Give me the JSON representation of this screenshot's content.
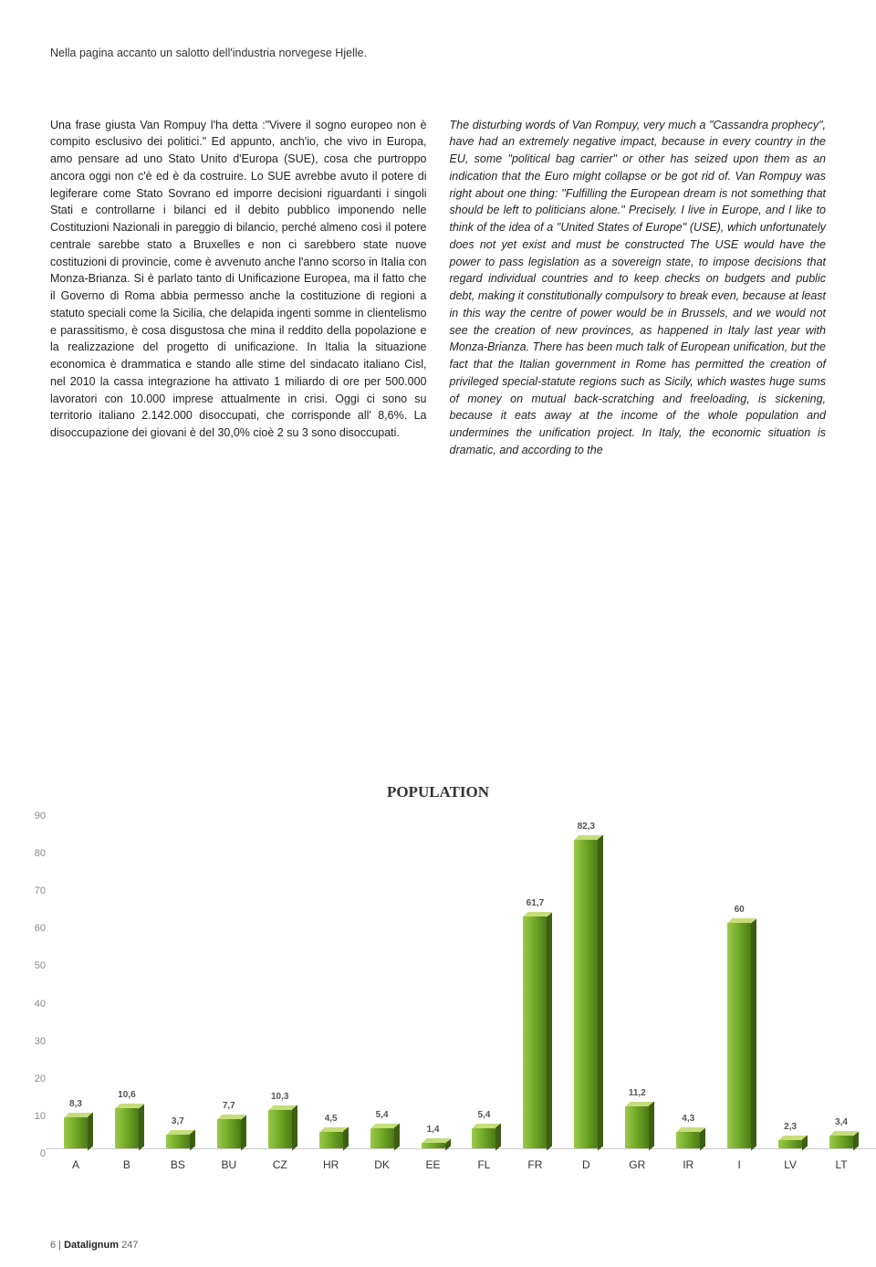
{
  "caption": "Nella pagina accanto un salotto dell'industria norvegese Hjelle.",
  "column_left": "Una frase giusta Van Rompuy l'ha detta :\"Vivere il sogno europeo non è compito esclusivo dei politici.\" Ed appunto, anch'io, che vivo in Europa, amo pensare ad uno Stato Unito d'Europa (SUE), cosa che purtroppo ancora oggi non c'è ed è da costruire. Lo SUE avrebbe avuto il potere di legiferare come Stato Sovrano ed imporre decisioni riguardanti i singoli Stati e controllarne i bilanci ed il debito pubblico imponendo nelle Costituzioni Nazionali in pareggio di bilancio, perché almeno così il potere centrale sarebbe stato a Bruxelles e non ci sarebbero state nuove costituzioni di provincie, come è avvenuto anche l'anno scorso in Italia con Monza-Brianza. Si è parlato tanto di Unificazione Europea, ma il fatto che il Governo di Roma abbia permesso anche la costituzione di regioni a statuto speciali come la Sicilia, che delapida ingenti somme in clientelismo e parassitismo, è cosa disgustosa che mina il reddito della popolazione e la realizzazione del progetto di unificazione. In Italia la situazione economica è drammatica e stando alle stime del sindacato italiano Cisl, nel 2010 la cassa integrazione ha attivato 1 miliardo di ore per 500.000 lavoratori con 10.000 imprese attualmente in crisi. Oggi ci sono su territorio italiano 2.142.000 disoccupati, che corrisponde all' 8,6%. La disoccupazione dei giovani è del 30,0% cioè 2 su 3 sono disoccupati.",
  "column_right": "The disturbing words of Van Rompuy, very much a \"Cassandra prophecy\", have had an extremely negative impact, because in every country in the EU, some \"political bag carrier\" or other has seized upon them as an indication that the Euro might collapse or be got rid of. Van Rompuy was right about one thing: \"Fulfilling the European dream is not something that should be left to politicians alone.\" Precisely. I live in Europe, and I like to think of the idea of a \"United States of Europe\" (USE), which unfortunately does not yet exist and must be constructed The USE would have the power to pass legislation as a sovereign state, to impose decisions that regard individual countries and to keep checks on budgets and public debt, making it constitutionally compulsory to break even, because at least in this way the centre of power would be in Brussels, and we would not see the creation of new provinces, as happened in Italy last year with Monza-Brianza. There has been much talk of European unification, but the fact that the Italian government in Rome has permitted the creation of privileged special-statute regions such as Sicily, which wastes huge sums of money on mutual back-scratching and freeloading, is sickening, because it eats away at the income of the whole population and undermines the unification project. In Italy, the economic situation is dramatic, and according to the",
  "chart": {
    "type": "bar",
    "title": "POPULATION",
    "ylim": [
      0,
      90
    ],
    "ytick_step": 10,
    "yticks": [
      0,
      10,
      20,
      30,
      40,
      50,
      60,
      70,
      80,
      90
    ],
    "categories": [
      "A",
      "B",
      "BS",
      "BU",
      "CZ",
      "HR",
      "DK",
      "EE",
      "FL",
      "FR",
      "D",
      "GR",
      "IR",
      "I",
      "LV",
      "LT"
    ],
    "values": [
      8.3,
      10.6,
      3.7,
      7.7,
      10.3,
      4.5,
      5.4,
      1.4,
      5.4,
      61.7,
      82.3,
      11.2,
      4.3,
      60,
      2.3,
      3.4
    ],
    "value_labels": [
      "8,3",
      "10,6",
      "3,7",
      "7,7",
      "10,3",
      "4,5",
      "5,4",
      "1,4",
      "5,4",
      "61,7",
      "82,3",
      "11,2",
      "4,3",
      "60",
      "2,3",
      "3,4"
    ],
    "bar_color_light": "#9cc94a",
    "bar_color_mid": "#6fa825",
    "bar_color_dark": "#4d7a17",
    "bar_top_color": "#c5dd7a",
    "bar_side_color": "#3d5f12",
    "grid_color": "#cccccc",
    "text_color": "#888888",
    "background_color": "#ffffff",
    "title_fontsize": 17,
    "label_fontsize": 12,
    "tick_fontsize": 11,
    "value_fontsize": 10
  },
  "footer": {
    "page_num": "6",
    "brand": "Datalignum",
    "issue": "247"
  }
}
